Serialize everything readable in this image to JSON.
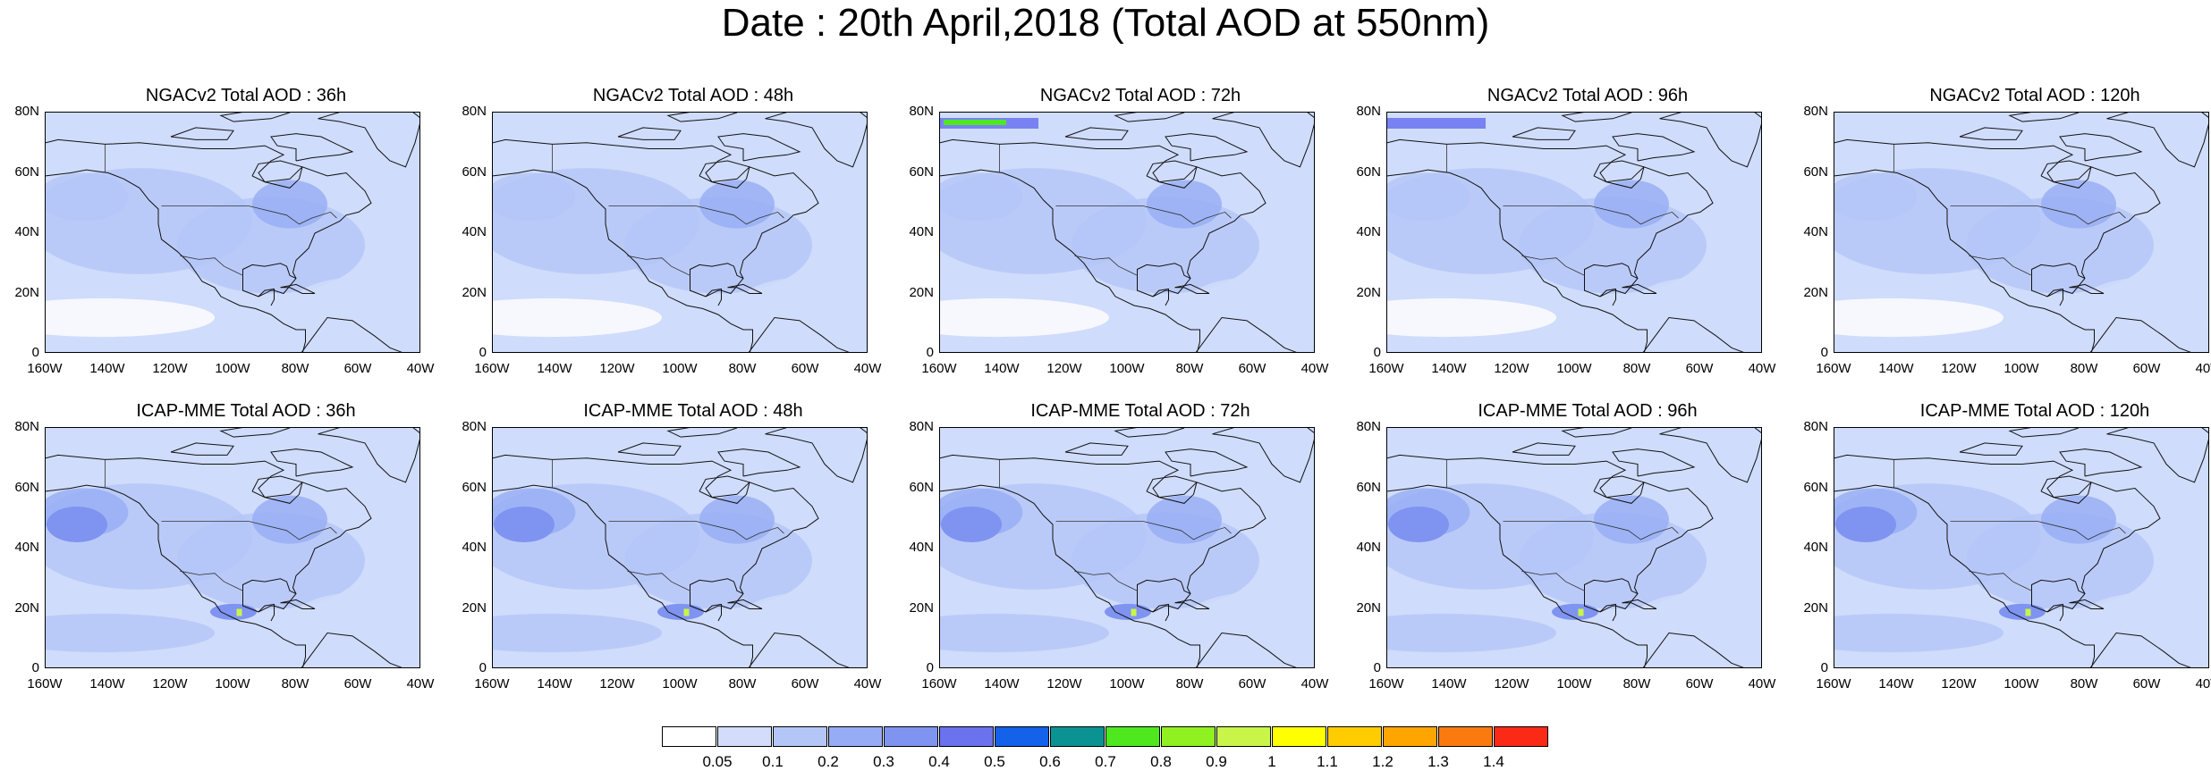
{
  "title": "Date : 20th April,2018 (Total AOD at 550nm)",
  "lat_labels": [
    "80N",
    "60N",
    "40N",
    "20N",
    "0"
  ],
  "lon_labels": [
    "160W",
    "140W",
    "120W",
    "100W",
    "80W",
    "60W",
    "40W"
  ],
  "panels": [
    {
      "title": "NGACv2 Total AOD : 36h",
      "model": "NGACv2",
      "lead": "36h",
      "blob": false,
      "plume": false
    },
    {
      "title": "NGACv2 Total AOD : 48h",
      "model": "NGACv2",
      "lead": "48h",
      "blob": false,
      "plume": false
    },
    {
      "title": "NGACv2 Total AOD : 72h",
      "model": "NGACv2",
      "lead": "72h",
      "blob": false,
      "plume": true
    },
    {
      "title": "NGACv2 Total AOD : 96h",
      "model": "NGACv2",
      "lead": "96h",
      "blob": false,
      "plume": true
    },
    {
      "title": "NGACv2 Total AOD : 120h",
      "model": "NGACv2",
      "lead": "120h",
      "blob": false,
      "plume": false
    },
    {
      "title": "ICAP-MME Total AOD : 36h",
      "model": "ICAP-MME",
      "lead": "36h",
      "blob": true,
      "plume": false
    },
    {
      "title": "ICAP-MME Total AOD : 48h",
      "model": "ICAP-MME",
      "lead": "48h",
      "blob": true,
      "plume": false
    },
    {
      "title": "ICAP-MME Total AOD : 72h",
      "model": "ICAP-MME",
      "lead": "72h",
      "blob": true,
      "plume": false
    },
    {
      "title": "ICAP-MME Total AOD : 96h",
      "model": "ICAP-MME",
      "lead": "96h",
      "blob": true,
      "plume": false
    },
    {
      "title": "ICAP-MME Total AOD : 120h",
      "model": "ICAP-MME",
      "lead": "120h",
      "blob": true,
      "plume": false
    }
  ],
  "colorbar": {
    "labels": [
      "0.05",
      "0.1",
      "0.2",
      "0.3",
      "0.4",
      "0.5",
      "0.6",
      "0.7",
      "0.8",
      "0.9",
      "1",
      "1.1",
      "1.2",
      "1.3",
      "1.4"
    ],
    "colors": [
      "#ffffff",
      "#d3ddfb",
      "#b4c6f8",
      "#96acf5",
      "#7f93f1",
      "#6a72ee",
      "#1461ea",
      "#0b9393",
      "#4fe81f",
      "#8ff11f",
      "#c9f548",
      "#ffff00",
      "#ffcc00",
      "#ffa500",
      "#fb7a10",
      "#fb2a17"
    ]
  }
}
